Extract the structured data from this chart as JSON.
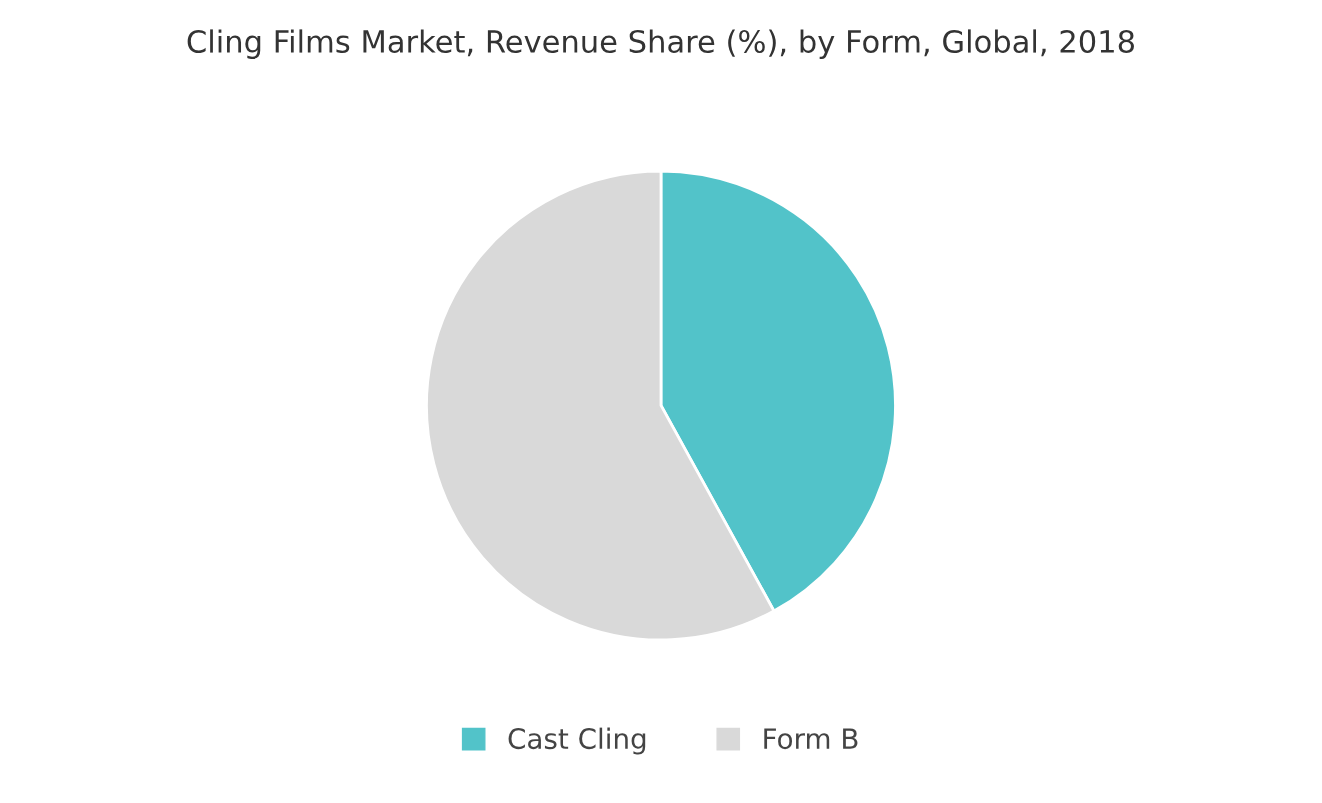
{
  "chart_data": {
    "type": "pie",
    "title": "Cling Films Market, Revenue Share (%), by Form, Global, 2018",
    "categories": [
      "Cast Cling",
      "Form B"
    ],
    "values": [
      42,
      58
    ],
    "colors": [
      "#52c3c9",
      "#d9d9d9"
    ],
    "legend": "bottom"
  }
}
